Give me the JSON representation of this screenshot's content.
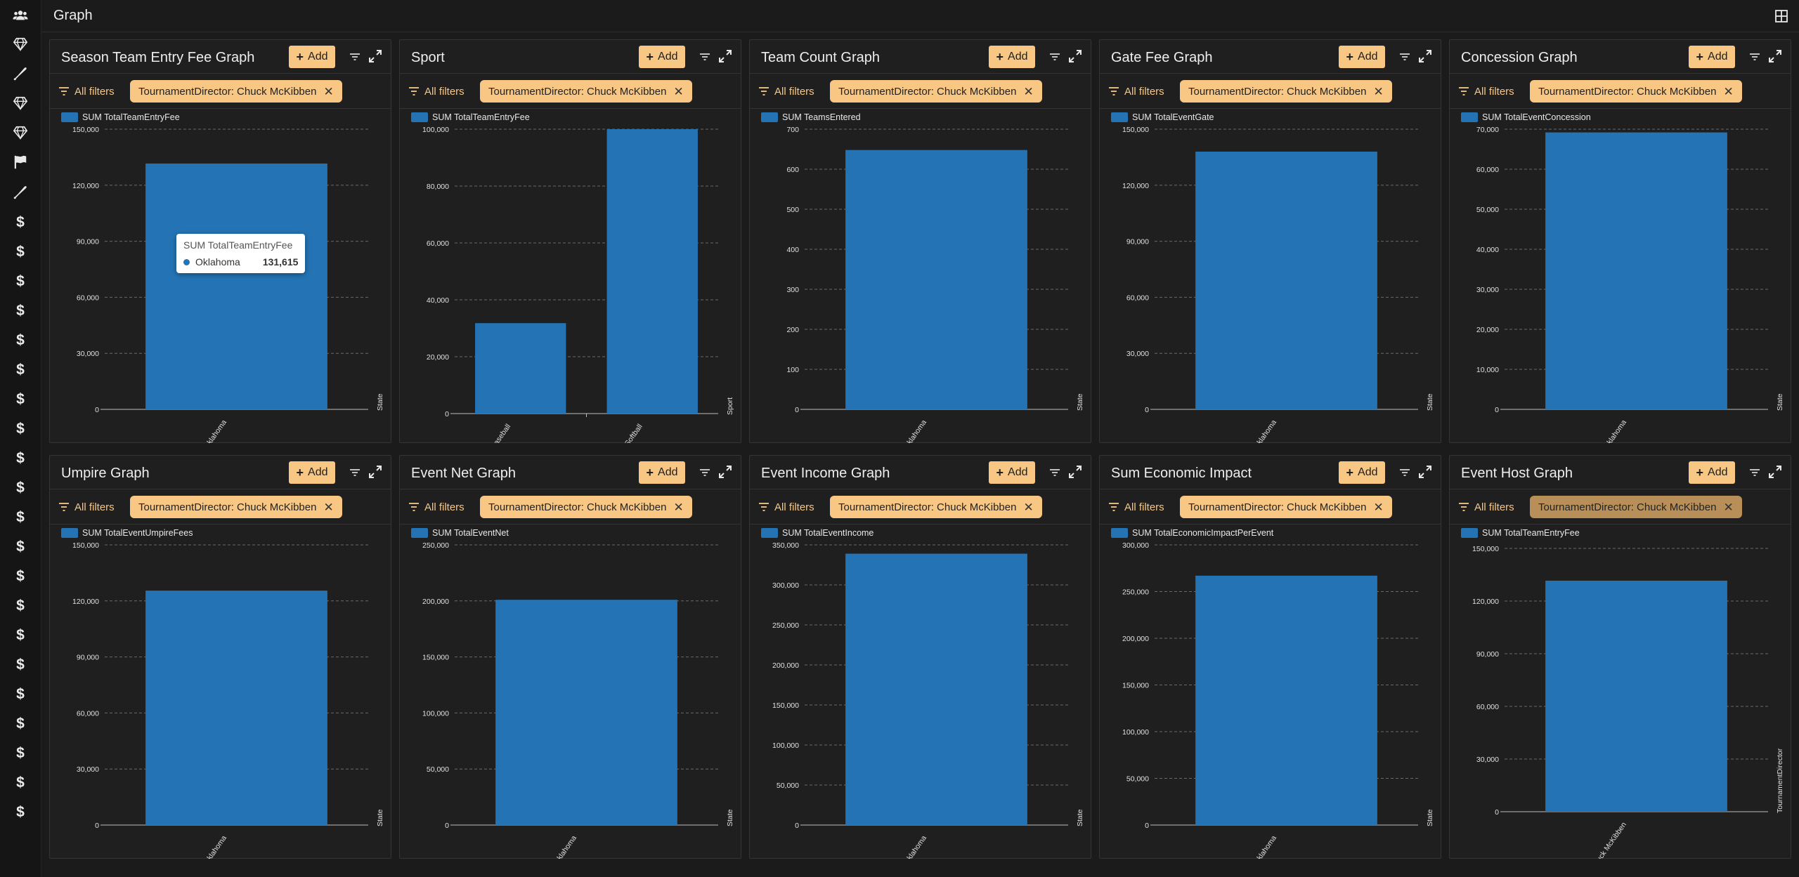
{
  "app": {
    "title": "Graph"
  },
  "sidebar": {
    "icons": [
      "users-icon",
      "diamond-icon",
      "bat-icon",
      "diamond-icon",
      "diamond-icon",
      "flag-icon",
      "bat-icon",
      "dollar-icon",
      "dollar-icon",
      "dollar-icon",
      "dollar-icon",
      "dollar-icon",
      "dollar-icon",
      "dollar-icon",
      "dollar-icon",
      "dollar-icon",
      "dollar-icon",
      "dollar-icon",
      "dollar-icon",
      "dollar-icon",
      "dollar-icon",
      "dollar-icon",
      "dollar-icon",
      "dollar-icon",
      "dollar-icon",
      "dollar-icon",
      "dollar-icon",
      "dollar-icon"
    ]
  },
  "common": {
    "add_label": "Add",
    "all_filters_label": "All filters",
    "filter_chip": "TournamentDirector: Chuck McKibben"
  },
  "colors": {
    "accent": "#f9c784",
    "bar": "#2474b5",
    "background": "#1b1b1b"
  },
  "panels": [
    {
      "title": "Season Team Entry Fee Graph",
      "tooltip": {
        "title": "SUM TotalTeamEntryFee",
        "label": "Oklahoma",
        "value": "131,615"
      },
      "chart_data": {
        "type": "bar",
        "legend": "SUM TotalTeamEntryFee",
        "categories": [
          "Oklahoma"
        ],
        "values": [
          131615
        ],
        "ylim": [
          0,
          150000
        ],
        "yticks": [
          "0",
          "30,000",
          "60,000",
          "90,000",
          "120,000",
          "150,000"
        ],
        "xlabel": "State"
      }
    },
    {
      "title": "Sport",
      "chart_data": {
        "type": "bar",
        "legend": "SUM TotalTeamEntryFee",
        "categories": [
          "Baseball",
          "Softball"
        ],
        "values": [
          31800,
          100000
        ],
        "ylim": [
          0,
          100000
        ],
        "yticks": [
          "0",
          "20,000",
          "40,000",
          "60,000",
          "80,000",
          "100,000"
        ],
        "xlabel": "Sport"
      }
    },
    {
      "title": "Team Count Graph",
      "chart_data": {
        "type": "bar",
        "legend": "SUM TeamsEntered",
        "categories": [
          "Oklahoma"
        ],
        "values": [
          648
        ],
        "ylim": [
          0,
          700
        ],
        "yticks": [
          "0",
          "100",
          "200",
          "300",
          "400",
          "500",
          "600",
          "700"
        ],
        "xlabel": "State"
      }
    },
    {
      "title": "Gate Fee Graph",
      "chart_data": {
        "type": "bar",
        "legend": "SUM TotalEventGate",
        "categories": [
          "Oklahoma"
        ],
        "values": [
          138000
        ],
        "ylim": [
          0,
          150000
        ],
        "yticks": [
          "0",
          "30,000",
          "60,000",
          "90,000",
          "120,000",
          "150,000"
        ],
        "xlabel": "State"
      }
    },
    {
      "title": "Concession Graph",
      "chart_data": {
        "type": "bar",
        "legend": "SUM TotalEventConcession",
        "categories": [
          "Oklahoma"
        ],
        "values": [
          69200
        ],
        "ylim": [
          0,
          70000
        ],
        "yticks": [
          "0",
          "10,000",
          "20,000",
          "30,000",
          "40,000",
          "50,000",
          "60,000",
          "70,000"
        ],
        "xlabel": "State"
      }
    },
    {
      "title": "Umpire Graph",
      "chart_data": {
        "type": "bar",
        "legend": "SUM TotalEventUmpireFees",
        "categories": [
          "Oklahoma"
        ],
        "values": [
          125500
        ],
        "ylim": [
          0,
          150000
        ],
        "yticks": [
          "0",
          "30,000",
          "60,000",
          "90,000",
          "120,000",
          "150,000"
        ],
        "xlabel": "State"
      }
    },
    {
      "title": "Event Net Graph",
      "chart_data": {
        "type": "bar",
        "legend": "SUM TotalEventNet",
        "categories": [
          "Oklahoma"
        ],
        "values": [
          201000
        ],
        "ylim": [
          0,
          250000
        ],
        "yticks": [
          "0",
          "50,000",
          "100,000",
          "150,000",
          "200,000",
          "250,000"
        ],
        "xlabel": "State"
      }
    },
    {
      "title": "Event Income Graph",
      "chart_data": {
        "type": "bar",
        "legend": "SUM TotalEventIncome",
        "categories": [
          "Oklahoma"
        ],
        "values": [
          339000
        ],
        "ylim": [
          0,
          350000
        ],
        "yticks": [
          "0",
          "50,000",
          "100,000",
          "150,000",
          "200,000",
          "250,000",
          "300,000",
          "350,000"
        ],
        "xlabel": "State"
      }
    },
    {
      "title": "Sum Economic Impact",
      "chart_data": {
        "type": "bar",
        "legend": "SUM TotalEconomicImpactPerEvent",
        "categories": [
          "Oklahoma"
        ],
        "values": [
          267000
        ],
        "ylim": [
          0,
          300000
        ],
        "yticks": [
          "0",
          "50,000",
          "100,000",
          "150,000",
          "200,000",
          "250,000",
          "300,000"
        ],
        "xlabel": "State"
      }
    },
    {
      "title": "Event Host Graph",
      "chart_data": {
        "type": "bar",
        "legend": "SUM TotalTeamEntryFee",
        "categories": [
          "Chuck McKibben"
        ],
        "values": [
          131615
        ],
        "ylim": [
          0,
          150000
        ],
        "yticks": [
          "0",
          "30,000",
          "60,000",
          "90,000",
          "120,000",
          "150,000"
        ],
        "xlabel": "TournamentDirector"
      }
    }
  ]
}
